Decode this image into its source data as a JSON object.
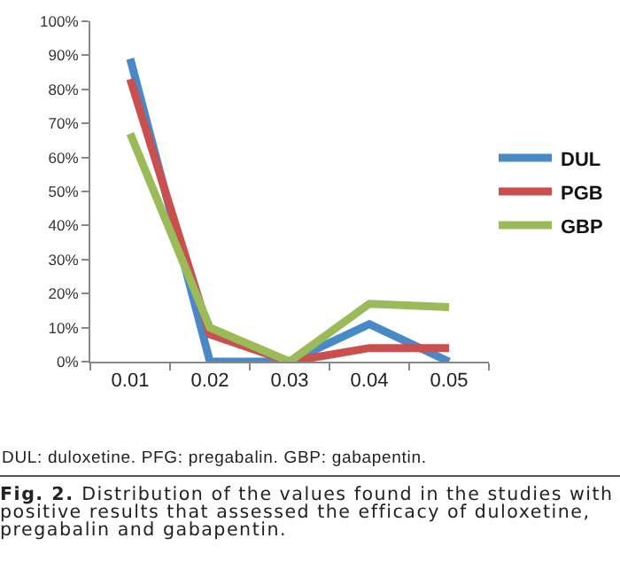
{
  "chart_data": {
    "type": "line",
    "categories": [
      "0.01",
      "0.02",
      "0.03",
      "0.04",
      "0.05"
    ],
    "series": [
      {
        "name": "DUL",
        "color": "#4a89c8",
        "values": [
          89,
          0,
          0,
          11,
          0
        ]
      },
      {
        "name": "PGB",
        "color": "#c9504e",
        "values": [
          83,
          8,
          0,
          4,
          4
        ]
      },
      {
        "name": "GBP",
        "color": "#9bbb59",
        "values": [
          67,
          10,
          0,
          17,
          16
        ]
      }
    ],
    "ylim": [
      0,
      100
    ],
    "yticks": [
      {
        "value": 0,
        "label": "0%"
      },
      {
        "value": 10,
        "label": "10%"
      },
      {
        "value": 20,
        "label": "20%"
      },
      {
        "value": 30,
        "label": "30%"
      },
      {
        "value": 40,
        "label": "40%"
      },
      {
        "value": 50,
        "label": "50%"
      },
      {
        "value": 60,
        "label": "60%"
      },
      {
        "value": 70,
        "label": "70%"
      },
      {
        "value": 80,
        "label": "80%"
      },
      {
        "value": 90,
        "label": "90%"
      },
      {
        "value": 100,
        "label": "100%"
      }
    ],
    "grid": false,
    "legend": "right",
    "marker": "none",
    "line_style": "solid",
    "annotations": [
      "DUL: duloxetine. PFG: pregabalin. GBP: gabapentin.",
      "Fig. 2. Distribution of the values found in the studies with positive results that assessed the efficacy of duloxetine, pregabalin and gabapentin."
    ]
  }
}
